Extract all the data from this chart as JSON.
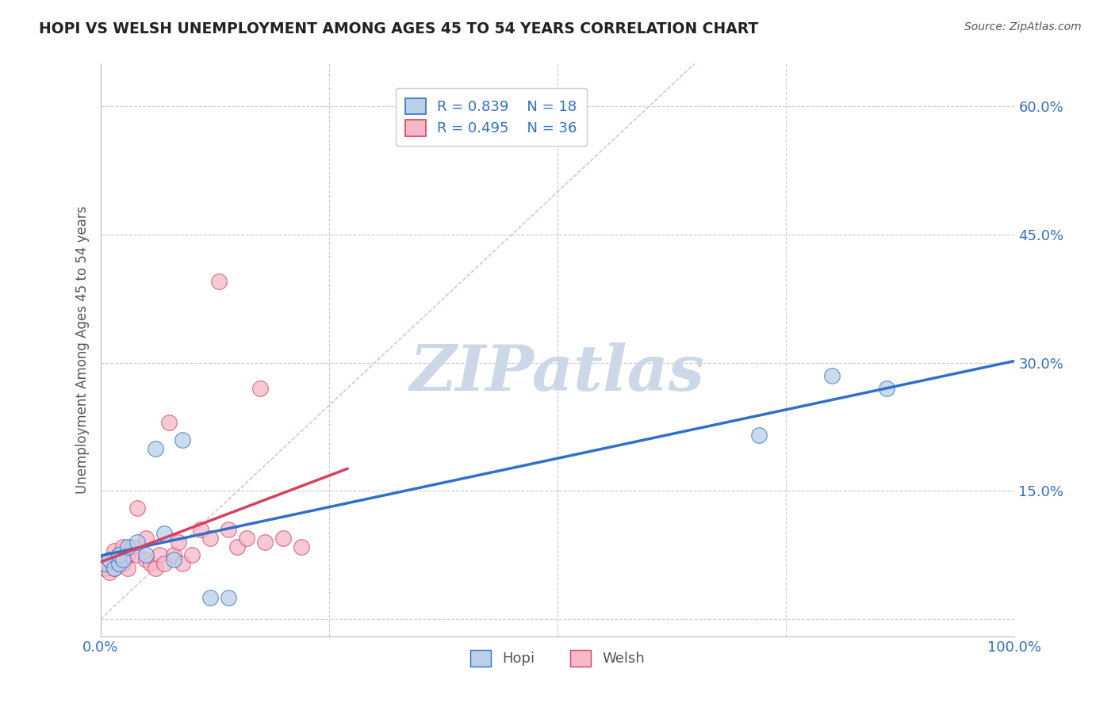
{
  "title": "HOPI VS WELSH UNEMPLOYMENT AMONG AGES 45 TO 54 YEARS CORRELATION CHART",
  "source": "Source: ZipAtlas.com",
  "ylabel": "Unemployment Among Ages 45 to 54 years",
  "xlim": [
    0.0,
    1.0
  ],
  "ylim": [
    -0.02,
    0.65
  ],
  "x_ticks": [
    0.0,
    0.25,
    0.5,
    0.75,
    1.0
  ],
  "x_tick_labels": [
    "0.0%",
    "",
    "",
    "",
    "100.0%"
  ],
  "y_ticks": [
    0.0,
    0.15,
    0.3,
    0.45,
    0.6
  ],
  "y_tick_labels": [
    "",
    "15.0%",
    "30.0%",
    "45.0%",
    "60.0%"
  ],
  "hopi_R": 0.839,
  "hopi_N": 18,
  "welsh_R": 0.495,
  "welsh_N": 36,
  "hopi_color": "#b8d0e8",
  "welsh_color": "#f5b8c8",
  "hopi_line_color": "#3070c8",
  "welsh_line_color": "#d84060",
  "diagonal_color": "#e0b8c0",
  "watermark_color": "#ccd8e8",
  "legend_label_color": "#3070c8",
  "hopi_points_x": [
    0.005,
    0.01,
    0.015,
    0.02,
    0.02,
    0.025,
    0.03,
    0.04,
    0.05,
    0.06,
    0.07,
    0.08,
    0.09,
    0.12,
    0.14,
    0.72,
    0.8,
    0.86
  ],
  "hopi_points_y": [
    0.065,
    0.07,
    0.06,
    0.065,
    0.075,
    0.07,
    0.085,
    0.09,
    0.075,
    0.2,
    0.1,
    0.07,
    0.21,
    0.025,
    0.025,
    0.215,
    0.285,
    0.27
  ],
  "welsh_points_x": [
    0.0,
    0.005,
    0.01,
    0.01,
    0.015,
    0.015,
    0.02,
    0.02,
    0.025,
    0.025,
    0.03,
    0.03,
    0.035,
    0.04,
    0.04,
    0.05,
    0.05,
    0.055,
    0.06,
    0.065,
    0.07,
    0.075,
    0.08,
    0.085,
    0.09,
    0.1,
    0.11,
    0.12,
    0.13,
    0.14,
    0.15,
    0.16,
    0.175,
    0.18,
    0.2,
    0.22
  ],
  "welsh_points_y": [
    0.065,
    0.06,
    0.055,
    0.07,
    0.06,
    0.08,
    0.065,
    0.075,
    0.065,
    0.085,
    0.06,
    0.075,
    0.085,
    0.075,
    0.13,
    0.07,
    0.095,
    0.065,
    0.06,
    0.075,
    0.065,
    0.23,
    0.075,
    0.09,
    0.065,
    0.075,
    0.105,
    0.095,
    0.395,
    0.105,
    0.085,
    0.095,
    0.27,
    0.09,
    0.095,
    0.085
  ],
  "background_color": "#ffffff",
  "grid_color": "#cccccc",
  "bottom_legend_label_color": "#555555"
}
